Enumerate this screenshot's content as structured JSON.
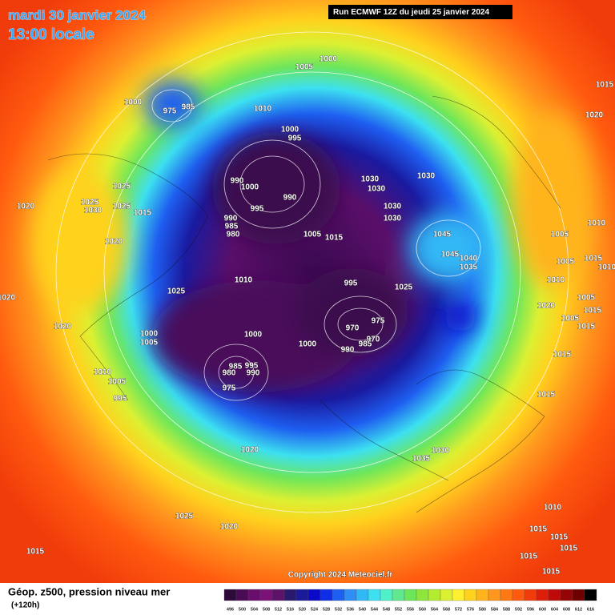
{
  "header": {
    "date": "mardi 30 janvier 2024",
    "time": "13:00 locale",
    "run": "Run ECMWF 12Z du jeudi 25 janvier 2024"
  },
  "pressure_labels": [
    1000,
    1005,
    1015,
    1020,
    1000,
    975,
    985,
    1010,
    1000,
    995,
    990,
    1000,
    990,
    1030,
    1030,
    1030,
    1025,
    1020,
    1025,
    1030,
    1025,
    1015,
    995,
    990,
    985,
    980,
    1020,
    1005,
    1015,
    1030,
    1030,
    1045,
    1045,
    1040,
    1035,
    1005,
    1010,
    1005,
    1015,
    1010,
    1010,
    1010,
    1025,
    995,
    1025,
    1020,
    1020,
    1020,
    1000,
    1005,
    1000,
    975,
    970,
    970,
    985,
    990,
    1000,
    1005,
    1015,
    1015,
    1005,
    1015,
    985,
    995,
    990,
    980,
    975,
    1010,
    1005,
    995,
    1015,
    1020,
    1030,
    1035,
    1025,
    1020,
    1010,
    1015,
    1015,
    1015,
    1015,
    1015,
    1015
  ],
  "footer": {
    "title": "Géop. z500, pression niveau mer",
    "subtitle": "(+120h)",
    "copyright": "Copyright 2024 Meteociel.fr"
  },
  "colorbar": {
    "ticks": [
      496,
      500,
      504,
      508,
      512,
      516,
      520,
      524,
      528,
      532,
      536,
      540,
      544,
      548,
      552,
      556,
      560,
      564,
      568,
      572,
      576,
      580,
      584,
      588,
      592,
      596,
      600,
      604,
      608,
      612,
      616
    ],
    "colors": [
      "#2d0a3a",
      "#4a0b54",
      "#6a0d6e",
      "#7a1277",
      "#5c1368",
      "#2a1a6e",
      "#1a1a9a",
      "#0a0ac8",
      "#0d2de6",
      "#1e5ef0",
      "#2e8ef5",
      "#32b8f5",
      "#3ce0f0",
      "#50f0c8",
      "#60e890",
      "#6ee65a",
      "#8ee63c",
      "#b4ec32",
      "#dcf032",
      "#fff032",
      "#ffd21e",
      "#ffb41e",
      "#ff961e",
      "#ff7814",
      "#ff5a0f",
      "#f03c0a",
      "#dc1e0a",
      "#be0a0a",
      "#960505",
      "#6e0000",
      "#000000"
    ]
  }
}
